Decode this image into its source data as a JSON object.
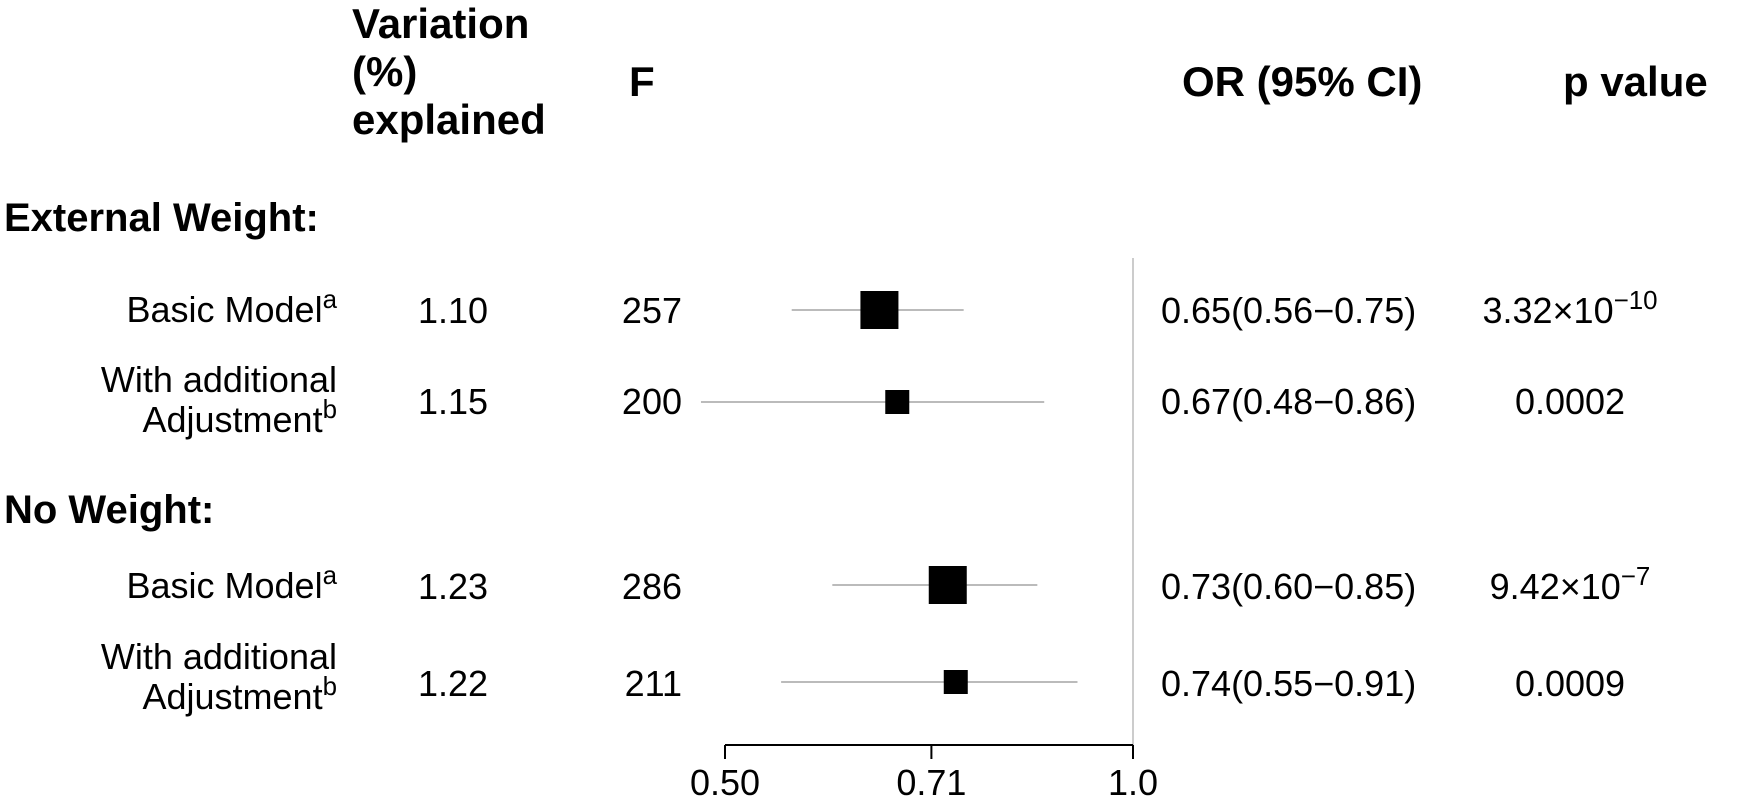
{
  "headers": {
    "variation_lines": [
      "Variation",
      "(%)",
      "explained"
    ],
    "f": "F",
    "or": "OR (95% CI)",
    "p": "p value"
  },
  "chart_data": {
    "type": "forest",
    "x_scale": "log",
    "reference_line": 1.0,
    "xlim": [
      0.5,
      1.0
    ],
    "xticks": [
      0.5,
      0.71,
      1.0
    ],
    "xtick_labels": [
      "0.50",
      "0.71",
      "1.0"
    ],
    "groups": [
      {
        "label": "External Weight:",
        "rows": [
          {
            "label_lines": [
              "Basic Model"
            ],
            "sup": "a",
            "variation": "1.10",
            "f": "257",
            "or": 0.65,
            "lo": 0.56,
            "hi": 0.75,
            "or_text": "0.65(0.56−0.75)",
            "p_base": "3.32×10",
            "p_exp": "−10",
            "size": "large"
          },
          {
            "label_lines": [
              "With additional",
              "Adjustment"
            ],
            "sup": "b",
            "variation": "1.15",
            "f": "200",
            "or": 0.67,
            "lo": 0.48,
            "hi": 0.86,
            "or_text": "0.67(0.48−0.86)",
            "p_base": "0.0002",
            "p_exp": "",
            "size": "small"
          }
        ]
      },
      {
        "label": "No Weight:",
        "rows": [
          {
            "label_lines": [
              "Basic Model"
            ],
            "sup": "a",
            "variation": "1.23",
            "f": "286",
            "or": 0.73,
            "lo": 0.6,
            "hi": 0.85,
            "or_text": "0.73(0.60−0.85)",
            "p_base": "9.42×10",
            "p_exp": "−7",
            "size": "large"
          },
          {
            "label_lines": [
              "With additional",
              "Adjustment"
            ],
            "sup": "b",
            "variation": "1.22",
            "f": "211",
            "or": 0.74,
            "lo": 0.55,
            "hi": 0.91,
            "or_text": "0.74(0.55−0.91)",
            "p_base": "0.0009",
            "p_exp": "",
            "size": "small"
          }
        ]
      }
    ]
  }
}
